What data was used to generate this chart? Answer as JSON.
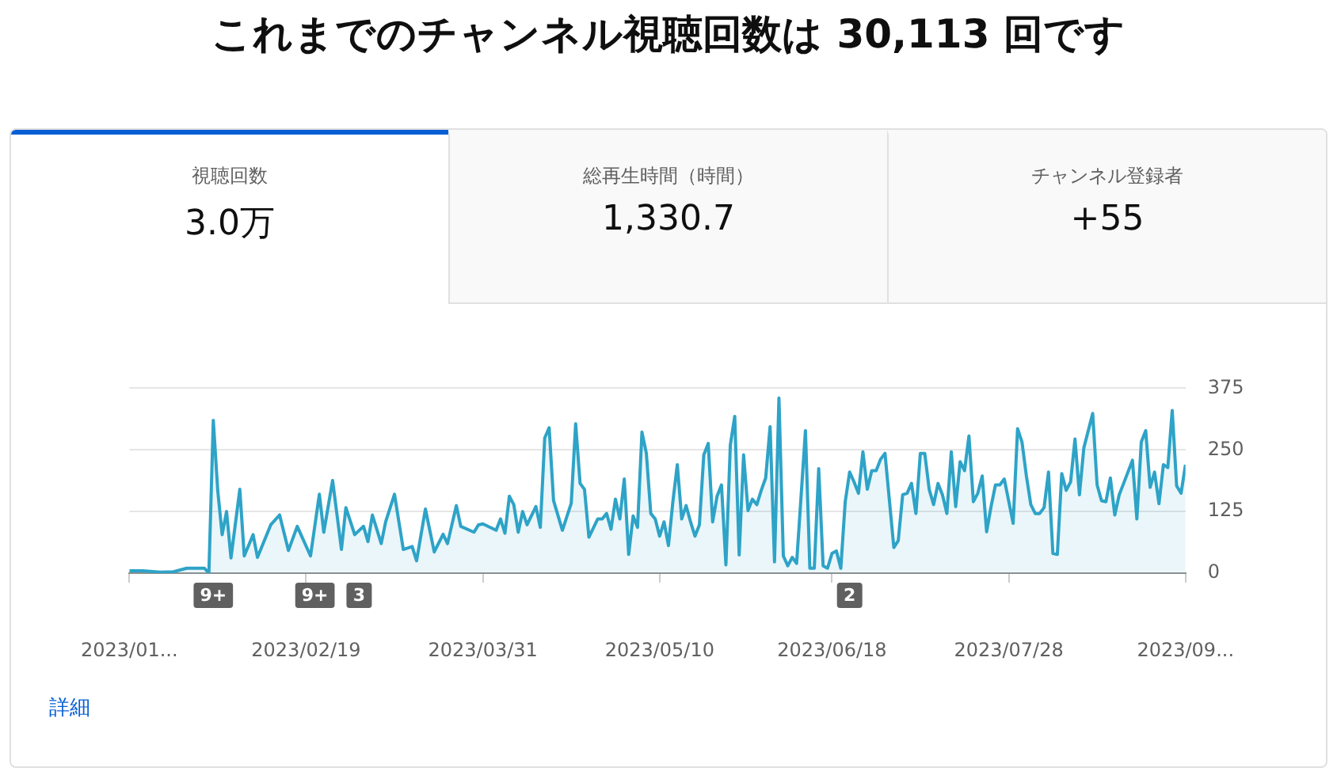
{
  "chart_data": [
    {
      "type": "other",
      "title": "これまでのチャンネル視聴回数は 30,113 回です",
      "annotations": [
        "視聴回数",
        "3.0万",
        "総再生時間（時間）",
        "1,330.7",
        "チャンネル登録者",
        "+55"
      ]
    },
    {
      "type": "area",
      "marker": "none",
      "grid": "y",
      "legend": false,
      "x": [
        "2023-01-10",
        "2023-01-13",
        "2023-01-17",
        "2023-01-20",
        "2023-01-23",
        "2023-01-27",
        "2023-01-28",
        "2023-01-29",
        "2023-01-30",
        "2023-01-31",
        "2023-02-01",
        "2023-02-02",
        "2023-02-04",
        "2023-02-05",
        "2023-02-07",
        "2023-02-08",
        "2023-02-11",
        "2023-02-13",
        "2023-02-15",
        "2023-02-17",
        "2023-02-20",
        "2023-02-22",
        "2023-02-23",
        "2023-02-25",
        "2023-02-27",
        "2023-02-28",
        "2023-03-02",
        "2023-03-04",
        "2023-03-05",
        "2023-03-06",
        "2023-03-08",
        "2023-03-09",
        "2023-03-11",
        "2023-03-13",
        "2023-03-15",
        "2023-03-16",
        "2023-03-18",
        "2023-03-20",
        "2023-03-22",
        "2023-03-23",
        "2023-03-25",
        "2023-03-26",
        "2023-03-29",
        "2023-03-30",
        "2023-03-31",
        "2023-04-03",
        "2023-04-04",
        "2023-04-05",
        "2023-04-06",
        "2023-04-07",
        "2023-04-08",
        "2023-04-09",
        "2023-04-10",
        "2023-04-12",
        "2023-04-13",
        "2023-04-14",
        "2023-04-15",
        "2023-04-16",
        "2023-04-18",
        "2023-04-20",
        "2023-04-21",
        "2023-04-22",
        "2023-04-23",
        "2023-04-24",
        "2023-04-26",
        "2023-04-27",
        "2023-04-28",
        "2023-04-29",
        "2023-04-30",
        "2023-05-01",
        "2023-05-02",
        "2023-05-03",
        "2023-05-04",
        "2023-05-05",
        "2023-05-06",
        "2023-05-07",
        "2023-05-08",
        "2023-05-09",
        "2023-05-10",
        "2023-05-11",
        "2023-05-12",
        "2023-05-13",
        "2023-05-14",
        "2023-05-15",
        "2023-05-16",
        "2023-05-17",
        "2023-05-18",
        "2023-05-19",
        "2023-05-20",
        "2023-05-21",
        "2023-05-22",
        "2023-05-23",
        "2023-05-24",
        "2023-05-25",
        "2023-05-26",
        "2023-05-27",
        "2023-05-28",
        "2023-05-29",
        "2023-05-30",
        "2023-05-31",
        "2023-06-01",
        "2023-06-02",
        "2023-06-03",
        "2023-06-04",
        "2023-06-05",
        "2023-06-06",
        "2023-06-07",
        "2023-06-08",
        "2023-06-09",
        "2023-06-10",
        "2023-06-12",
        "2023-06-13",
        "2023-06-14",
        "2023-06-15",
        "2023-06-16",
        "2023-06-17",
        "2023-06-18",
        "2023-06-19",
        "2023-06-20",
        "2023-06-21",
        "2023-06-22",
        "2023-06-23",
        "2023-06-24",
        "2023-06-25",
        "2023-06-26",
        "2023-06-27",
        "2023-06-28",
        "2023-06-29",
        "2023-06-30",
        "2023-07-02",
        "2023-07-03",
        "2023-07-04",
        "2023-07-05",
        "2023-07-06",
        "2023-07-07",
        "2023-07-08",
        "2023-07-09",
        "2023-07-10",
        "2023-07-11",
        "2023-07-12",
        "2023-07-13",
        "2023-07-14",
        "2023-07-15",
        "2023-07-16",
        "2023-07-17",
        "2023-07-18",
        "2023-07-19",
        "2023-07-20",
        "2023-07-21",
        "2023-07-22",
        "2023-07-23",
        "2023-07-24",
        "2023-07-25",
        "2023-07-26",
        "2023-07-27",
        "2023-07-29",
        "2023-07-30",
        "2023-07-31",
        "2023-08-01",
        "2023-08-02",
        "2023-08-03",
        "2023-08-04",
        "2023-08-05",
        "2023-08-06",
        "2023-08-07",
        "2023-08-08",
        "2023-08-09",
        "2023-08-10",
        "2023-08-11",
        "2023-08-12",
        "2023-08-13",
        "2023-08-14",
        "2023-08-16",
        "2023-08-17",
        "2023-08-18",
        "2023-08-19",
        "2023-08-20",
        "2023-08-21",
        "2023-08-22",
        "2023-08-23",
        "2023-08-25",
        "2023-08-26",
        "2023-08-27",
        "2023-08-28",
        "2023-08-29",
        "2023-08-30",
        "2023-08-31",
        "2023-09-01",
        "2023-09-02",
        "2023-09-03",
        "2023-09-04",
        "2023-09-05",
        "2023-09-06"
      ],
      "series": [
        {
          "color": "#2ea3c7",
          "values": [
            5,
            5,
            2,
            3,
            10,
            10,
            0,
            310,
            168,
            78,
            125,
            31,
            170,
            35,
            78,
            32,
            98,
            118,
            46,
            95,
            35,
            160,
            83,
            188,
            48,
            133,
            78,
            95,
            64,
            118,
            60,
            104,
            160,
            48,
            54,
            25,
            130,
            43,
            79,
            60,
            137,
            95,
            83,
            98,
            100,
            87,
            110,
            81,
            156,
            139,
            83,
            125,
            98,
            135,
            93,
            274,
            295,
            147,
            87,
            142,
            303,
            182,
            170,
            73,
            110,
            110,
            121,
            89,
            150,
            110,
            191,
            38,
            116,
            93,
            286,
            243,
            121,
            110,
            75,
            104,
            56,
            145,
            220,
            110,
            137,
            104,
            75,
            98,
            240,
            263,
            104,
            156,
            179,
            17,
            260,
            318,
            37,
            240,
            127,
            150,
            139,
            168,
            193,
            297,
            23,
            355,
            35,
            15,
            32,
            20,
            289,
            10,
            10,
            212,
            15,
            10,
            40,
            45,
            10,
            145,
            205,
            185,
            162,
            246,
            170,
            208,
            208,
            231,
            243,
            52,
            66,
            159,
            162,
            182,
            121,
            243,
            243,
            170,
            139,
            182,
            159,
            121,
            246,
            135,
            226,
            208,
            278,
            145,
            162,
            197,
            84,
            135,
            179,
            179,
            191,
            101,
            293,
            266,
            197,
            139,
            121,
            121,
            133,
            205,
            40,
            38,
            202,
            168,
            185,
            272,
            159,
            254,
            324,
            179,
            147,
            145,
            193,
            118,
            159,
            182,
            229,
            110,
            266,
            289,
            174,
            205,
            141,
            220,
            214,
            330,
            177,
            162,
            220
          ]
        }
      ],
      "xlim": [
        "2023-01-10",
        "2023-09-06"
      ],
      "xticks": [
        {
          "value": "2023-01-10",
          "label": "2023/01..."
        },
        {
          "value": "2023-02-19",
          "label": "2023/02/19"
        },
        {
          "value": "2023-03-31",
          "label": "2023/03/31"
        },
        {
          "value": "2023-05-10",
          "label": "2023/05/10"
        },
        {
          "value": "2023-06-18",
          "label": "2023/06/18"
        },
        {
          "value": "2023-07-28",
          "label": "2023/07/28"
        },
        {
          "value": "2023-09-06",
          "label": "2023/09..."
        }
      ],
      "ylim": [
        0,
        375
      ],
      "yticks": [
        0,
        125,
        250,
        375
      ],
      "annotations": [
        {
          "text": "9+",
          "x": "2023-01-29",
          "y": 0
        },
        {
          "text": "9+",
          "x": "2023-02-21",
          "y": 0
        },
        {
          "text": "3",
          "x": "2023-03-03",
          "y": 0
        },
        {
          "text": "2",
          "x": "2023-06-22",
          "y": 0
        },
        "詳細"
      ]
    }
  ]
}
